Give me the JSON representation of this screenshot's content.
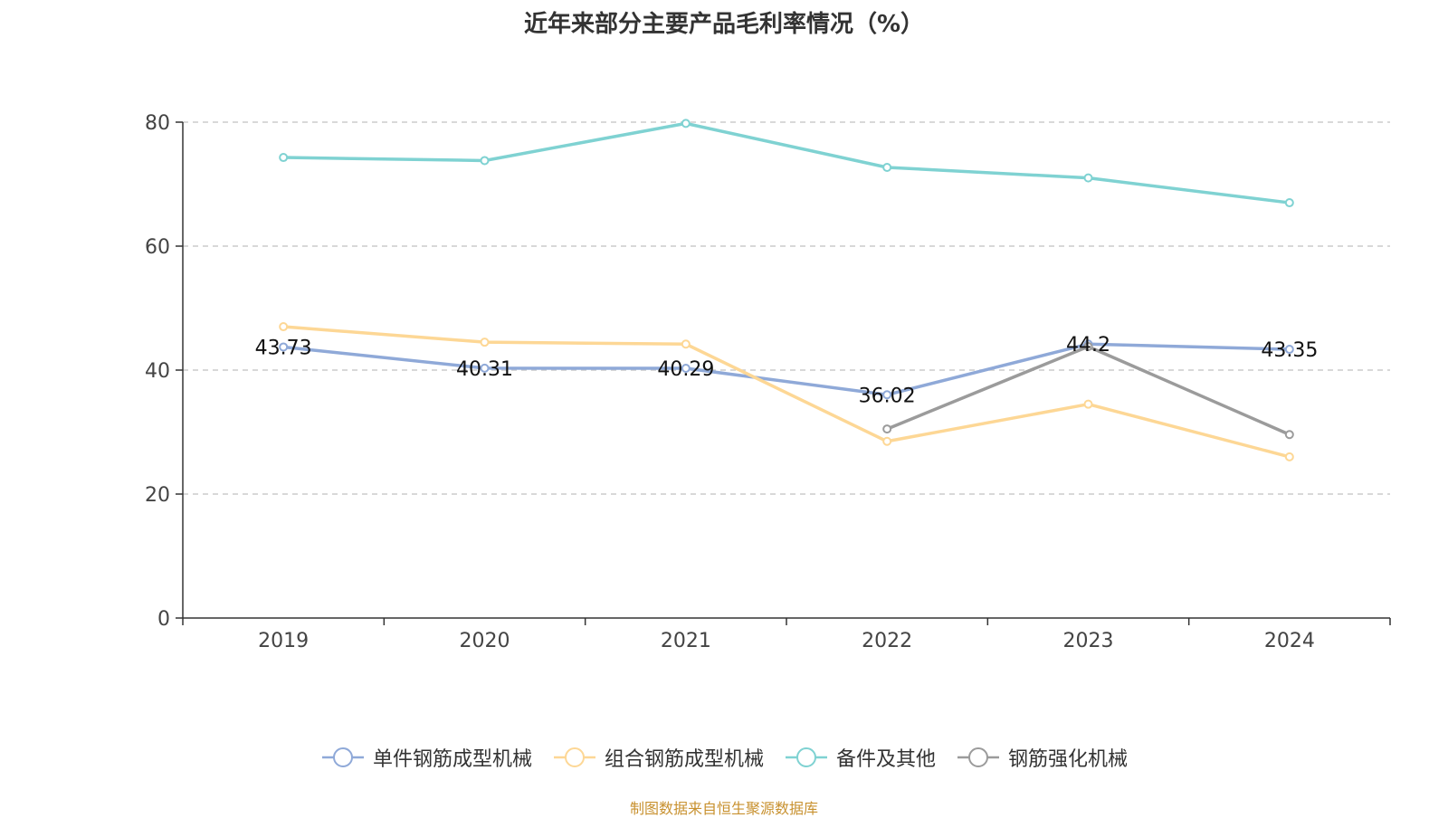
{
  "title": "近年来部分主要产品毛利率情况（%）",
  "source": "制图数据来自恒生聚源数据库",
  "chart_data": {
    "type": "line",
    "title": "近年来部分主要产品毛利率情况（%）",
    "categories": [
      "2019",
      "2020",
      "2021",
      "2022",
      "2023",
      "2024"
    ],
    "ylim": [
      0,
      80
    ],
    "yticks": [
      0,
      20,
      40,
      60,
      80
    ],
    "grid": true,
    "legend_position": "bottom",
    "series": [
      {
        "name": "单件钢筋成型机械",
        "color": "#8fa9d8",
        "labels": true,
        "values": [
          43.73,
          40.31,
          40.29,
          36.02,
          44.2,
          43.35
        ]
      },
      {
        "name": "组合钢筋成型机械",
        "color": "#fdd795",
        "labels": false,
        "values": [
          47.0,
          44.5,
          44.2,
          28.5,
          34.5,
          26.0
        ]
      },
      {
        "name": "备件及其他",
        "color": "#7fd2d2",
        "labels": false,
        "values": [
          74.3,
          73.8,
          79.8,
          72.7,
          71.0,
          67.0
        ]
      },
      {
        "name": "钢筋强化机械",
        "color": "#9b9b9b",
        "labels": false,
        "values": [
          null,
          null,
          null,
          30.5,
          43.8,
          29.6
        ]
      }
    ]
  }
}
